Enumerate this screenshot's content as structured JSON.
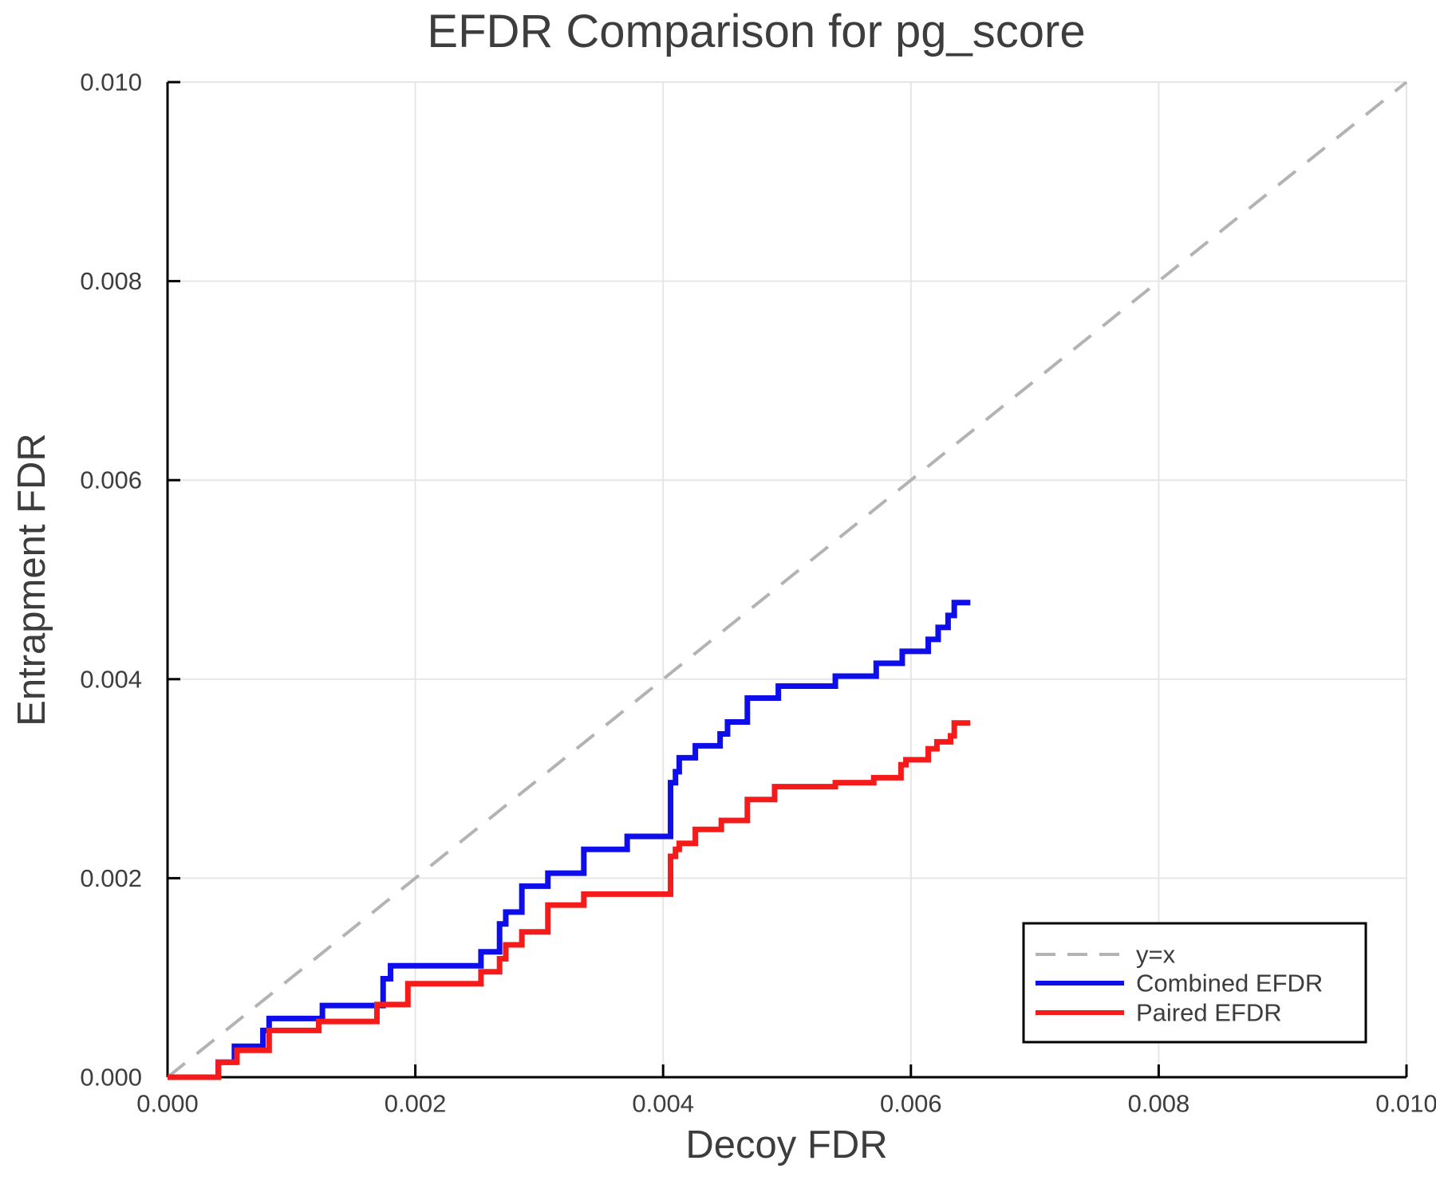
{
  "chart_data": {
    "type": "line",
    "title": "EFDR Comparison for pg_score",
    "xlabel": "Decoy FDR",
    "ylabel": "Entrapment FDR",
    "xlim": [
      0.0,
      0.01
    ],
    "ylim": [
      0.0,
      0.01
    ],
    "xticks": [
      0.0,
      0.002,
      0.004,
      0.006,
      0.008,
      0.01
    ],
    "yticks": [
      0.0,
      0.002,
      0.004,
      0.006,
      0.008,
      0.01
    ],
    "tick_decimals": 3,
    "grid": true,
    "legend_position": "bottom-right",
    "colors": {
      "background": "#ffffff",
      "grid": "#e6e6e6",
      "axis": "#000000",
      "text": "#3d3d3d",
      "identity": "#b3b3b3",
      "combined": "#0e0eea",
      "paired": "#f51b1b"
    },
    "series": [
      {
        "name": "y=x",
        "kind": "identity",
        "style": "dashed",
        "color_key": "identity",
        "from": [
          0.0,
          0.0
        ],
        "to": [
          0.01,
          0.01
        ]
      },
      {
        "name": "Combined EFDR",
        "kind": "step",
        "style": "solid",
        "color_key": "combined",
        "start": [
          0.0,
          0.0
        ],
        "end_x": 0.00648,
        "steps": [
          [
            0.00041,
            0.00015
          ],
          [
            0.00054,
            0.00031
          ],
          [
            0.00077,
            0.00047
          ],
          [
            0.00082,
            0.00059
          ],
          [
            0.00125,
            0.00072
          ],
          [
            0.00174,
            0.00099
          ],
          [
            0.0018,
            0.00112
          ],
          [
            0.00253,
            0.00126
          ],
          [
            0.00268,
            0.00154
          ],
          [
            0.00273,
            0.00166
          ],
          [
            0.00286,
            0.00192
          ],
          [
            0.00307,
            0.00205
          ],
          [
            0.00336,
            0.00229
          ],
          [
            0.00371,
            0.00242
          ],
          [
            0.00406,
            0.00296
          ],
          [
            0.0041,
            0.00307
          ],
          [
            0.00413,
            0.00321
          ],
          [
            0.00426,
            0.00333
          ],
          [
            0.00446,
            0.00345
          ],
          [
            0.00452,
            0.00357
          ],
          [
            0.00468,
            0.00381
          ],
          [
            0.00493,
            0.00393
          ],
          [
            0.00539,
            0.00403
          ],
          [
            0.00572,
            0.00416
          ],
          [
            0.00593,
            0.00428
          ],
          [
            0.00614,
            0.0044
          ],
          [
            0.00622,
            0.00452
          ],
          [
            0.0063,
            0.00464
          ],
          [
            0.00635,
            0.00477
          ]
        ]
      },
      {
        "name": "Paired EFDR",
        "kind": "step",
        "style": "solid",
        "color_key": "paired",
        "start": [
          0.0,
          0.0
        ],
        "end_x": 0.00648,
        "steps": [
          [
            0.00041,
            0.00015
          ],
          [
            0.00056,
            0.00027
          ],
          [
            0.00082,
            0.00047
          ],
          [
            0.00122,
            0.00056
          ],
          [
            0.00169,
            0.00073
          ],
          [
            0.00194,
            0.00094
          ],
          [
            0.00253,
            0.00106
          ],
          [
            0.00268,
            0.00119
          ],
          [
            0.00273,
            0.00133
          ],
          [
            0.00286,
            0.00146
          ],
          [
            0.00307,
            0.00173
          ],
          [
            0.00336,
            0.00184
          ],
          [
            0.00406,
            0.00222
          ],
          [
            0.0041,
            0.00229
          ],
          [
            0.00413,
            0.00235
          ],
          [
            0.00426,
            0.00249
          ],
          [
            0.00447,
            0.00258
          ],
          [
            0.00468,
            0.00279
          ],
          [
            0.0049,
            0.00292
          ],
          [
            0.00539,
            0.00296
          ],
          [
            0.0057,
            0.00301
          ],
          [
            0.00592,
            0.00314
          ],
          [
            0.00596,
            0.00319
          ],
          [
            0.00614,
            0.0033
          ],
          [
            0.00621,
            0.00337
          ],
          [
            0.00632,
            0.00343
          ],
          [
            0.00635,
            0.00356
          ]
        ]
      }
    ],
    "legend": {
      "entries": [
        "y=x",
        "Combined EFDR",
        "Paired EFDR"
      ]
    }
  }
}
